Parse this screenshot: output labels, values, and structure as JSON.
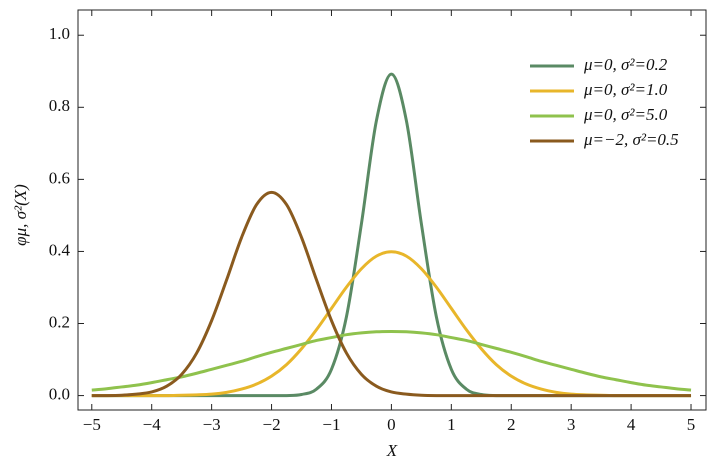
{
  "chart_data": {
    "type": "line",
    "x_label": "X",
    "y_label": "φμ, σ²(X)",
    "x": [
      -5,
      -4.75,
      -4.5,
      -4.25,
      -4,
      -3.75,
      -3.5,
      -3.25,
      -3,
      -2.75,
      -2.5,
      -2.25,
      -2,
      -1.75,
      -1.5,
      -1.25,
      -1,
      -0.75,
      -0.5,
      -0.25,
      0,
      0.25,
      0.5,
      0.75,
      1,
      1.25,
      1.5,
      1.75,
      2,
      2.25,
      2.5,
      2.75,
      3,
      3.25,
      3.5,
      3.75,
      4,
      4.25,
      4.5,
      4.75,
      5
    ],
    "series": [
      {
        "name": "μ=0, σ²=0.2",
        "color": "#5a8a64",
        "values": [
          0,
          0,
          0,
          0,
          0,
          0,
          0,
          0,
          0,
          0,
          0,
          0,
          0,
          0,
          0.003,
          0.018,
          0.073,
          0.219,
          0.477,
          0.763,
          0.892,
          0.763,
          0.477,
          0.219,
          0.073,
          0.018,
          0.003,
          0,
          0,
          0,
          0,
          0,
          0,
          0,
          0,
          0,
          0,
          0,
          0,
          0,
          0
        ]
      },
      {
        "name": "μ=0, σ²=1.0",
        "color": "#e8b62a",
        "values": [
          0,
          0,
          0,
          0,
          0,
          0,
          0.001,
          0.002,
          0.004,
          0.009,
          0.018,
          0.032,
          0.054,
          0.086,
          0.13,
          0.183,
          0.242,
          0.301,
          0.352,
          0.387,
          0.399,
          0.387,
          0.352,
          0.301,
          0.242,
          0.183,
          0.13,
          0.086,
          0.054,
          0.032,
          0.018,
          0.009,
          0.004,
          0.002,
          0.001,
          0,
          0,
          0,
          0,
          0,
          0
        ]
      },
      {
        "name": "μ=0, σ²=5.0",
        "color": "#8fc24d",
        "values": [
          0.015,
          0.019,
          0.024,
          0.029,
          0.036,
          0.044,
          0.052,
          0.062,
          0.073,
          0.084,
          0.095,
          0.108,
          0.12,
          0.131,
          0.142,
          0.153,
          0.161,
          0.169,
          0.174,
          0.177,
          0.178,
          0.177,
          0.174,
          0.169,
          0.161,
          0.153,
          0.142,
          0.131,
          0.12,
          0.108,
          0.095,
          0.084,
          0.073,
          0.062,
          0.052,
          0.044,
          0.036,
          0.029,
          0.024,
          0.019,
          0.015
        ]
      },
      {
        "name": "μ=−2, σ²=0.5",
        "color": "#8a5a1e",
        "values": [
          0,
          0,
          0.001,
          0.004,
          0.01,
          0.026,
          0.059,
          0.118,
          0.208,
          0.321,
          0.439,
          0.53,
          0.564,
          0.53,
          0.439,
          0.321,
          0.208,
          0.118,
          0.059,
          0.026,
          0.01,
          0.004,
          0.001,
          0,
          0,
          0,
          0,
          0,
          0,
          0,
          0,
          0,
          0,
          0,
          0,
          0,
          0,
          0,
          0,
          0,
          0
        ]
      }
    ],
    "xlim": [
      -5.23,
      5.25
    ],
    "ylim": [
      -0.04,
      1.07
    ],
    "xticks": [
      {
        "value": -5,
        "label": "−5"
      },
      {
        "value": -4,
        "label": "−4"
      },
      {
        "value": -3,
        "label": "−3"
      },
      {
        "value": -2,
        "label": "−2"
      },
      {
        "value": -1,
        "label": "−1"
      },
      0,
      1,
      2,
      3,
      4,
      5
    ],
    "yticks": [
      {
        "value": 0,
        "label": "0.0"
      },
      {
        "value": 0.2,
        "label": "0.2"
      },
      {
        "value": 0.4,
        "label": "0.4"
      },
      {
        "value": 0.6,
        "label": "0.6"
      },
      {
        "value": 0.8,
        "label": "0.8"
      },
      {
        "value": 1,
        "label": "1.0"
      }
    ],
    "legend": "upper right"
  }
}
